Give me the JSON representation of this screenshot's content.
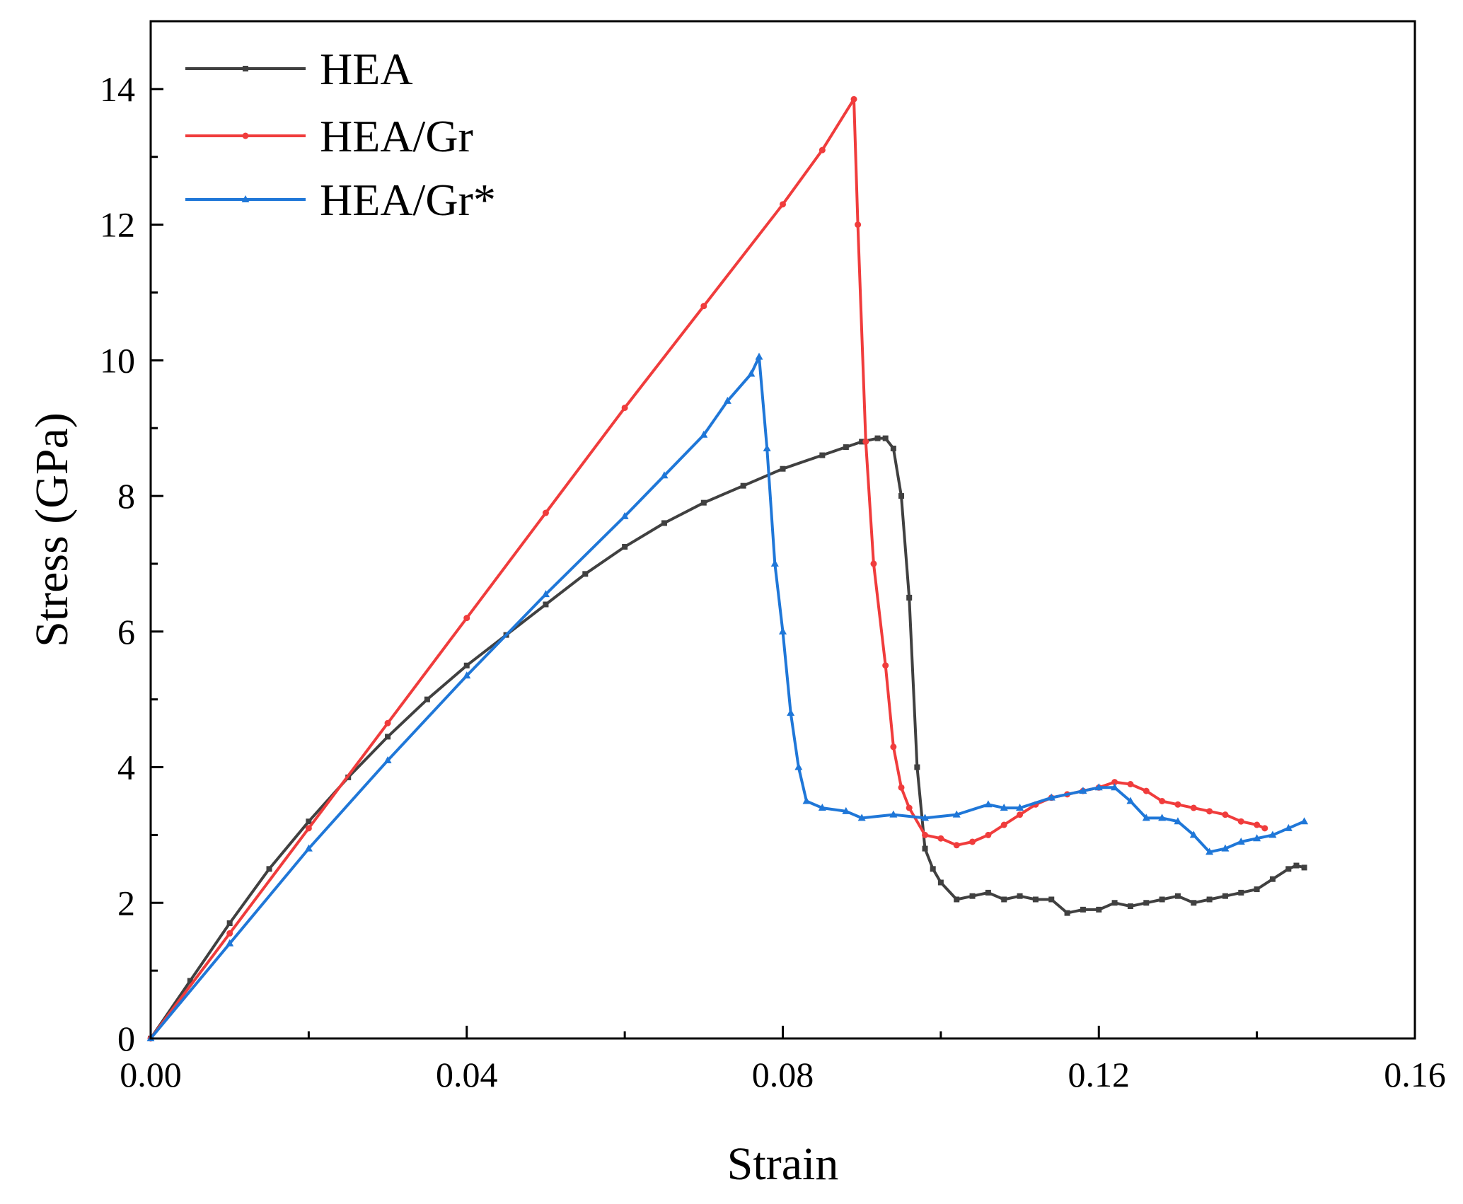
{
  "chart_data": {
    "type": "line",
    "title": "",
    "xlabel": "Strain",
    "ylabel": "Stress (GPa)",
    "xlim": [
      0,
      0.16
    ],
    "ylim": [
      0,
      15
    ],
    "x_ticks": [
      0,
      0.04,
      0.08,
      0.12,
      0.16
    ],
    "x_tick_labels": [
      "0.00",
      "0.04",
      "0.08",
      "0.12",
      "0.16"
    ],
    "y_ticks": [
      0,
      2,
      4,
      6,
      8,
      10,
      12,
      14
    ],
    "y_tick_labels": [
      "0",
      "2",
      "4",
      "6",
      "8",
      "10",
      "12",
      "14"
    ],
    "grid": false,
    "legend_position": "top-left",
    "series": [
      {
        "name": "HEA",
        "color": "#404040",
        "marker": "square",
        "x": [
          0,
          0.005,
          0.01,
          0.015,
          0.02,
          0.025,
          0.03,
          0.035,
          0.04,
          0.045,
          0.05,
          0.055,
          0.06,
          0.065,
          0.07,
          0.075,
          0.08,
          0.085,
          0.088,
          0.09,
          0.092,
          0.093,
          0.094,
          0.095,
          0.096,
          0.097,
          0.098,
          0.099,
          0.1,
          0.102,
          0.104,
          0.106,
          0.108,
          0.11,
          0.112,
          0.114,
          0.116,
          0.118,
          0.12,
          0.122,
          0.124,
          0.126,
          0.128,
          0.13,
          0.132,
          0.134,
          0.136,
          0.138,
          0.14,
          0.142,
          0.144,
          0.145,
          0.146
        ],
        "values": [
          0,
          0.85,
          1.7,
          2.5,
          3.2,
          3.85,
          4.45,
          5.0,
          5.5,
          5.95,
          6.4,
          6.85,
          7.25,
          7.6,
          7.9,
          8.15,
          8.4,
          8.6,
          8.72,
          8.8,
          8.85,
          8.85,
          8.7,
          8.0,
          6.5,
          4.0,
          2.8,
          2.5,
          2.3,
          2.05,
          2.1,
          2.15,
          2.05,
          2.1,
          2.05,
          2.05,
          1.85,
          1.9,
          1.9,
          2.0,
          1.95,
          2.0,
          2.05,
          2.1,
          2.0,
          2.05,
          2.1,
          2.15,
          2.2,
          2.35,
          2.5,
          2.55,
          2.52
        ]
      },
      {
        "name": "HEA/Gr",
        "color": "#f03c3c",
        "marker": "circle",
        "x": [
          0,
          0.01,
          0.02,
          0.03,
          0.04,
          0.05,
          0.06,
          0.07,
          0.08,
          0.085,
          0.089,
          0.0895,
          0.0905,
          0.0915,
          0.093,
          0.094,
          0.095,
          0.096,
          0.098,
          0.1,
          0.102,
          0.104,
          0.106,
          0.108,
          0.11,
          0.112,
          0.114,
          0.116,
          0.118,
          0.12,
          0.122,
          0.124,
          0.126,
          0.128,
          0.13,
          0.132,
          0.134,
          0.136,
          0.138,
          0.14,
          0.141
        ],
        "values": [
          0,
          1.55,
          3.1,
          4.65,
          6.2,
          7.75,
          9.3,
          10.8,
          12.3,
          13.1,
          13.85,
          12.0,
          8.8,
          7.0,
          5.5,
          4.3,
          3.7,
          3.4,
          3.0,
          2.95,
          2.85,
          2.9,
          3.0,
          3.15,
          3.3,
          3.45,
          3.55,
          3.6,
          3.65,
          3.7,
          3.78,
          3.75,
          3.65,
          3.5,
          3.45,
          3.4,
          3.35,
          3.3,
          3.2,
          3.15,
          3.1
        ]
      },
      {
        "name": "HEA/Gr*",
        "color": "#1f77d8",
        "marker": "triangle",
        "x": [
          0,
          0.01,
          0.02,
          0.03,
          0.04,
          0.05,
          0.06,
          0.065,
          0.07,
          0.073,
          0.076,
          0.077,
          0.078,
          0.079,
          0.08,
          0.081,
          0.082,
          0.083,
          0.085,
          0.088,
          0.09,
          0.094,
          0.098,
          0.102,
          0.106,
          0.108,
          0.11,
          0.114,
          0.118,
          0.12,
          0.122,
          0.124,
          0.126,
          0.128,
          0.13,
          0.132,
          0.134,
          0.136,
          0.138,
          0.14,
          0.142,
          0.144,
          0.146
        ],
        "values": [
          0,
          1.4,
          2.8,
          4.1,
          5.35,
          6.55,
          7.7,
          8.3,
          8.9,
          9.4,
          9.8,
          10.05,
          8.7,
          7.0,
          6.0,
          4.8,
          4.0,
          3.5,
          3.4,
          3.35,
          3.25,
          3.3,
          3.25,
          3.3,
          3.45,
          3.4,
          3.4,
          3.55,
          3.65,
          3.7,
          3.7,
          3.5,
          3.25,
          3.25,
          3.2,
          3.0,
          2.75,
          2.8,
          2.9,
          2.95,
          3.0,
          3.1,
          3.2
        ]
      }
    ]
  }
}
